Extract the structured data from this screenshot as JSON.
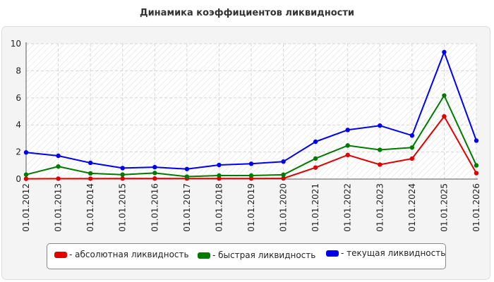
{
  "chart_data": {
    "type": "line",
    "title": "Динамика коэффициентов ликвидности",
    "xlabel": "",
    "ylabel": "",
    "categories": [
      "01.01.2012",
      "01.01.2013",
      "01.01.2014",
      "01.01.2015",
      "01.01.2016",
      "01.01.2017",
      "01.01.2018",
      "01.01.2019",
      "01.01.2020",
      "01.01.2021",
      "01.01.2022",
      "01.01.2023",
      "01.01.2024",
      "01.01.2025",
      "01.01.2026"
    ],
    "ylim": [
      0,
      10
    ],
    "yticks": [
      0,
      2,
      4,
      6,
      8,
      10
    ],
    "grid": true,
    "legend_position": "bottom",
    "series": [
      {
        "name": "- абсолютная ликвидность",
        "color": "#e00000",
        "values": [
          0.02,
          0.03,
          0.03,
          0.04,
          0.04,
          0.04,
          0.04,
          0.04,
          0.05,
          0.85,
          1.78,
          1.07,
          1.51,
          4.63,
          0.44
        ]
      },
      {
        "name": "- быстрая ликвидность",
        "color": "#007a00",
        "values": [
          0.33,
          0.93,
          0.42,
          0.33,
          0.45,
          0.18,
          0.26,
          0.26,
          0.32,
          1.52,
          2.48,
          2.16,
          2.33,
          6.17,
          1.01
        ]
      },
      {
        "name": "- текущая ликвидность",
        "color": "#0000ee",
        "values": [
          1.97,
          1.72,
          1.2,
          0.81,
          0.88,
          0.74,
          1.04,
          1.13,
          1.29,
          2.76,
          3.63,
          3.95,
          3.22,
          9.38,
          2.84
        ]
      }
    ]
  }
}
